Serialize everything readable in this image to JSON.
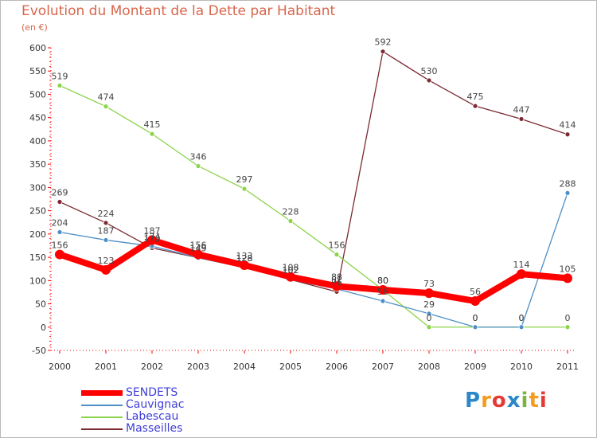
{
  "title": "Evolution du Montant de la Dette par Habitant",
  "subtitle": "(en €)",
  "logo": {
    "text": "Proxiti",
    "letter_colors": [
      "#2a87c8",
      "#f39c1f",
      "#e53935",
      "#2a87c8",
      "#7cb342",
      "#f39c1f",
      "#e53935"
    ]
  },
  "chart_data": {
    "type": "line",
    "title": "Evolution du Montant de la Dette par Habitant",
    "ylabel": "(en €)",
    "xlabel": "",
    "x": [
      "2000",
      "2001",
      "2002",
      "2003",
      "2004",
      "2005",
      "2006",
      "2007",
      "2008",
      "2009",
      "2010",
      "2011"
    ],
    "ylim": [
      -50,
      600
    ],
    "yticks": [
      -50,
      0,
      50,
      100,
      150,
      200,
      250,
      300,
      350,
      400,
      450,
      500,
      550,
      600
    ],
    "grid": false,
    "legend_position": "bottom-left",
    "series": [
      {
        "name": "SENDETS",
        "color": "#ff0000",
        "values": [
          156,
          123,
          187,
          156,
          133,
          108,
          88,
          80,
          73,
          56,
          114,
          105
        ],
        "labels": [
          "156",
          "123",
          "187",
          "156",
          "133",
          "108",
          "88",
          "80",
          "73",
          "56",
          "114",
          "105"
        ]
      },
      {
        "name": "Cauvignac",
        "color": "#4d8fc6",
        "values": [
          204,
          187,
          174,
          149,
          128,
          102,
          82,
          56,
          29,
          0,
          0,
          288
        ],
        "labels": [
          "204",
          "187",
          "174",
          "149",
          "128",
          "102",
          "82",
          "56",
          "29",
          "0",
          "0",
          "288"
        ]
      },
      {
        "name": "Labescau",
        "color": "#8bd44a",
        "values": [
          519,
          474,
          415,
          346,
          297,
          228,
          156,
          80,
          0,
          0,
          0,
          0
        ],
        "labels": [
          "519",
          "474",
          "415",
          "346",
          "297",
          "228",
          "156",
          "80",
          "0",
          "0",
          "0",
          "0"
        ]
      },
      {
        "name": "Masseilles",
        "color": "#7a2a32",
        "values": [
          269,
          224,
          170,
          149,
          128,
          102,
          76,
          592,
          530,
          475,
          447,
          414
        ],
        "labels": [
          "269",
          "224",
          "170",
          "149",
          "128",
          "102",
          "76",
          "592",
          "530",
          "475",
          "447",
          "414"
        ]
      }
    ]
  }
}
